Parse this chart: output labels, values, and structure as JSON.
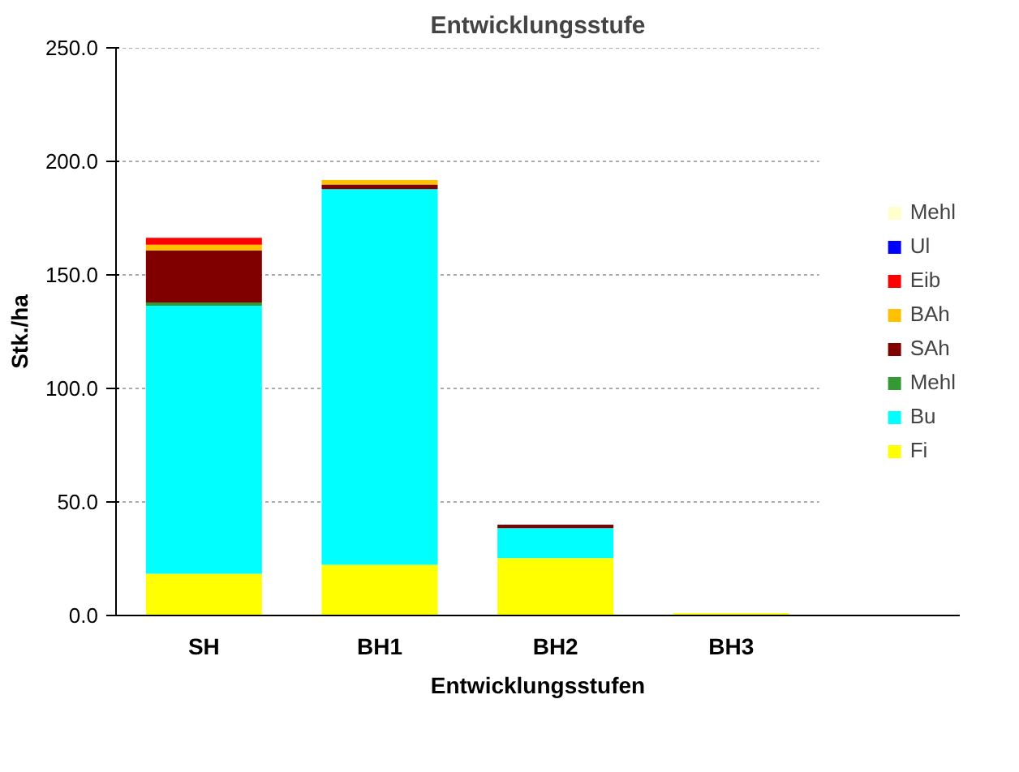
{
  "chart_data": {
    "type": "bar",
    "title": "Entwicklungsstufe",
    "xlabel": "Entwicklungsstufen",
    "ylabel": "Stk./ha",
    "categories": [
      "SH",
      "BH1",
      "BH2",
      "BH3"
    ],
    "stacked": true,
    "series": [
      {
        "name": "Fi",
        "color": "#ffff00",
        "values": [
          18.4,
          22.3,
          25.3,
          1.0
        ]
      },
      {
        "name": "Bu",
        "color": "#00ffff",
        "values": [
          118.0,
          165.5,
          13.2,
          0
        ]
      },
      {
        "name": "Mehl",
        "color": "#339933",
        "values": [
          1.5,
          0,
          0,
          0
        ]
      },
      {
        "name": "SAh",
        "color": "#800000",
        "values": [
          22.8,
          2.0,
          1.5,
          0
        ]
      },
      {
        "name": "BAh",
        "color": "#ffc000",
        "values": [
          2.6,
          2.0,
          0,
          0
        ]
      },
      {
        "name": "Eib",
        "color": "#ff0000",
        "values": [
          3.0,
          0,
          0,
          0
        ]
      },
      {
        "name": "Ul",
        "color": "#0000ff",
        "values": [
          0,
          0,
          0,
          0
        ]
      },
      {
        "name": "Mehl",
        "color": "#ffffcc",
        "values": [
          0,
          0,
          0,
          0
        ]
      }
    ],
    "ylim": [
      0,
      250
    ],
    "yticks": [
      {
        "value": 0,
        "label": "0.0"
      },
      {
        "value": 50,
        "label": "50.0"
      },
      {
        "value": 100,
        "label": "100.0"
      },
      {
        "value": 150,
        "label": "150.0"
      },
      {
        "value": 200,
        "label": "200.0"
      },
      {
        "value": 250,
        "label": "250.0"
      }
    ],
    "grid": "y",
    "legend": "right"
  }
}
